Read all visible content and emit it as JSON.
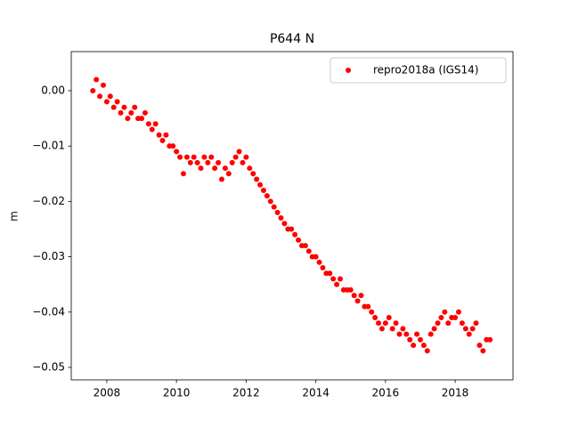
{
  "chart_data": {
    "type": "scatter",
    "title": "P644 N",
    "y_label": "m",
    "x": [
      2007.6,
      2007.7,
      2007.8,
      2007.9,
      2008.0,
      2008.1,
      2008.2,
      2008.3,
      2008.4,
      2008.5,
      2008.6,
      2008.7,
      2008.8,
      2008.9,
      2009.0,
      2009.1,
      2009.2,
      2009.3,
      2009.4,
      2009.5,
      2009.6,
      2009.7,
      2009.8,
      2009.9,
      2010.0,
      2010.1,
      2010.2,
      2010.3,
      2010.4,
      2010.5,
      2010.6,
      2010.7,
      2010.8,
      2010.9,
      2011.0,
      2011.1,
      2011.2,
      2011.3,
      2011.4,
      2011.5,
      2011.6,
      2011.7,
      2011.8,
      2011.9,
      2012.0,
      2012.1,
      2012.2,
      2012.3,
      2012.4,
      2012.5,
      2012.6,
      2012.7,
      2012.8,
      2012.9,
      2013.0,
      2013.1,
      2013.2,
      2013.3,
      2013.4,
      2013.5,
      2013.6,
      2013.7,
      2013.8,
      2013.9,
      2014.0,
      2014.1,
      2014.2,
      2014.3,
      2014.4,
      2014.5,
      2014.6,
      2014.7,
      2014.8,
      2014.9,
      2015.0,
      2015.1,
      2015.2,
      2015.3,
      2015.4,
      2015.5,
      2015.6,
      2015.7,
      2015.8,
      2015.9,
      2016.0,
      2016.1,
      2016.2,
      2016.3,
      2016.4,
      2016.5,
      2016.6,
      2016.7,
      2016.8,
      2016.9,
      2017.0,
      2017.1,
      2017.2,
      2017.3,
      2017.4,
      2017.5,
      2017.6,
      2017.7,
      2017.8,
      2017.9,
      2018.0,
      2018.1,
      2018.2,
      2018.3,
      2018.4,
      2018.5,
      2018.6,
      2018.7,
      2018.8,
      2018.9,
      2019.0
    ],
    "series": [
      {
        "name": "repro2018a (IGS14)",
        "color": "#ff0000",
        "values": [
          0.0,
          0.002,
          -0.001,
          0.001,
          -0.002,
          -0.001,
          -0.003,
          -0.002,
          -0.004,
          -0.003,
          -0.005,
          -0.004,
          -0.003,
          -0.005,
          -0.005,
          -0.004,
          -0.006,
          -0.007,
          -0.006,
          -0.008,
          -0.009,
          -0.008,
          -0.01,
          -0.01,
          -0.011,
          -0.012,
          -0.015,
          -0.012,
          -0.013,
          -0.012,
          -0.013,
          -0.014,
          -0.012,
          -0.013,
          -0.012,
          -0.014,
          -0.013,
          -0.016,
          -0.014,
          -0.015,
          -0.013,
          -0.012,
          -0.011,
          -0.013,
          -0.012,
          -0.014,
          -0.015,
          -0.016,
          -0.017,
          -0.018,
          -0.019,
          -0.02,
          -0.021,
          -0.022,
          -0.023,
          -0.024,
          -0.025,
          -0.025,
          -0.026,
          -0.027,
          -0.028,
          -0.028,
          -0.029,
          -0.03,
          -0.03,
          -0.031,
          -0.032,
          -0.033,
          -0.033,
          -0.034,
          -0.035,
          -0.034,
          -0.036,
          -0.036,
          -0.036,
          -0.037,
          -0.038,
          -0.037,
          -0.039,
          -0.039,
          -0.04,
          -0.041,
          -0.042,
          -0.043,
          -0.042,
          -0.041,
          -0.043,
          -0.042,
          -0.044,
          -0.043,
          -0.044,
          -0.045,
          -0.046,
          -0.044,
          -0.045,
          -0.046,
          -0.047,
          -0.044,
          -0.043,
          -0.042,
          -0.041,
          -0.04,
          -0.042,
          -0.041,
          -0.041,
          -0.04,
          -0.042,
          -0.043,
          -0.044,
          -0.043,
          -0.042,
          -0.046,
          -0.047,
          -0.045,
          -0.045
        ]
      }
    ],
    "xlim": [
      2006.98,
      2019.66
    ],
    "xticks": [
      2008,
      2010,
      2012,
      2014,
      2016,
      2018
    ],
    "ylim": [
      -0.05225,
      0.00707
    ],
    "yticks": [
      {
        "value": 0,
        "label": "0.00"
      },
      {
        "value": -0.01,
        "label": "−0.01"
      },
      {
        "value": -0.02,
        "label": "−0.02"
      },
      {
        "value": -0.03,
        "label": "−0.03"
      },
      {
        "value": -0.04,
        "label": "−0.04"
      },
      {
        "value": -0.05,
        "label": "−0.05"
      }
    ],
    "legend": "upper right",
    "grid": false
  }
}
